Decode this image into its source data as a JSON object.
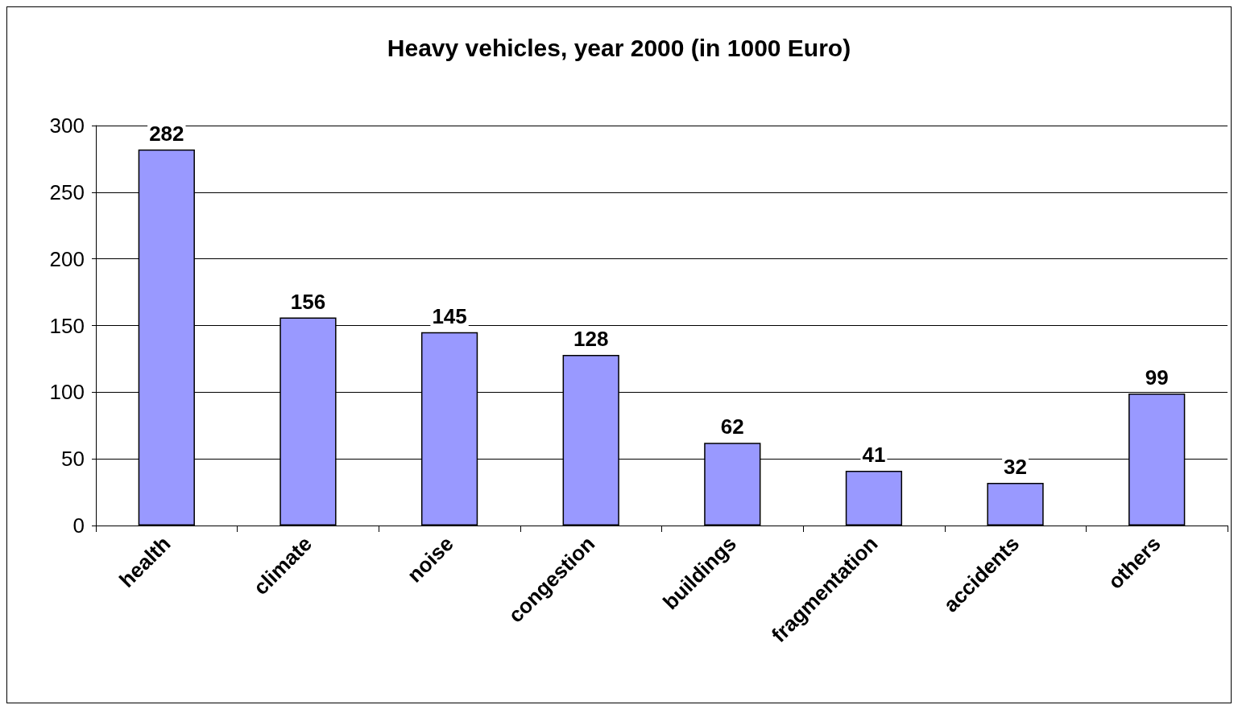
{
  "chart_data": {
    "type": "bar",
    "title": "Heavy vehicles, year 2000 (in 1000 Euro)",
    "categories": [
      "health",
      "climate",
      "noise",
      "congestion",
      "buildings",
      "fragmentation",
      "accidents",
      "others"
    ],
    "values": [
      282,
      156,
      145,
      128,
      62,
      41,
      32,
      99
    ],
    "color": "#9999ff",
    "ylim": [
      0,
      300
    ],
    "yticks": [
      0,
      50,
      100,
      150,
      200,
      250,
      300
    ],
    "grid": "y",
    "data_labels": true
  }
}
